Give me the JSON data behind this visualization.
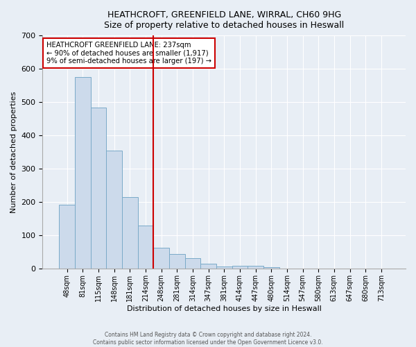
{
  "title_line1": "HEATHCROFT, GREENFIELD LANE, WIRRAL, CH60 9HG",
  "title_line2": "Size of property relative to detached houses in Heswall",
  "xlabel": "Distribution of detached houses by size in Heswall",
  "ylabel": "Number of detached properties",
  "bar_labels": [
    "48sqm",
    "81sqm",
    "115sqm",
    "148sqm",
    "181sqm",
    "214sqm",
    "248sqm",
    "281sqm",
    "314sqm",
    "347sqm",
    "381sqm",
    "414sqm",
    "447sqm",
    "480sqm",
    "514sqm",
    "547sqm",
    "580sqm",
    "613sqm",
    "647sqm",
    "680sqm",
    "713sqm"
  ],
  "bar_values": [
    192,
    576,
    484,
    355,
    215,
    130,
    63,
    45,
    33,
    15,
    8,
    10,
    10,
    6,
    0,
    0,
    0,
    0,
    0,
    0,
    0
  ],
  "bar_color": "#ccdaeb",
  "bar_edge_color": "#7aaac8",
  "background_color": "#e8eef5",
  "grid_color": "#ffffff",
  "vline_x_index": 6,
  "vline_color": "#cc0000",
  "annotation_text": "HEATHCROFT GREENFIELD LANE: 237sqm\n← 90% of detached houses are smaller (1,917)\n9% of semi-detached houses are larger (197) →",
  "annotation_box_color": "#ffffff",
  "annotation_box_edge": "#cc0000",
  "ylim": [
    0,
    700
  ],
  "yticks": [
    0,
    100,
    200,
    300,
    400,
    500,
    600,
    700
  ],
  "footer_line1": "Contains HM Land Registry data © Crown copyright and database right 2024.",
  "footer_line2": "Contains public sector information licensed under the Open Government Licence v3.0."
}
